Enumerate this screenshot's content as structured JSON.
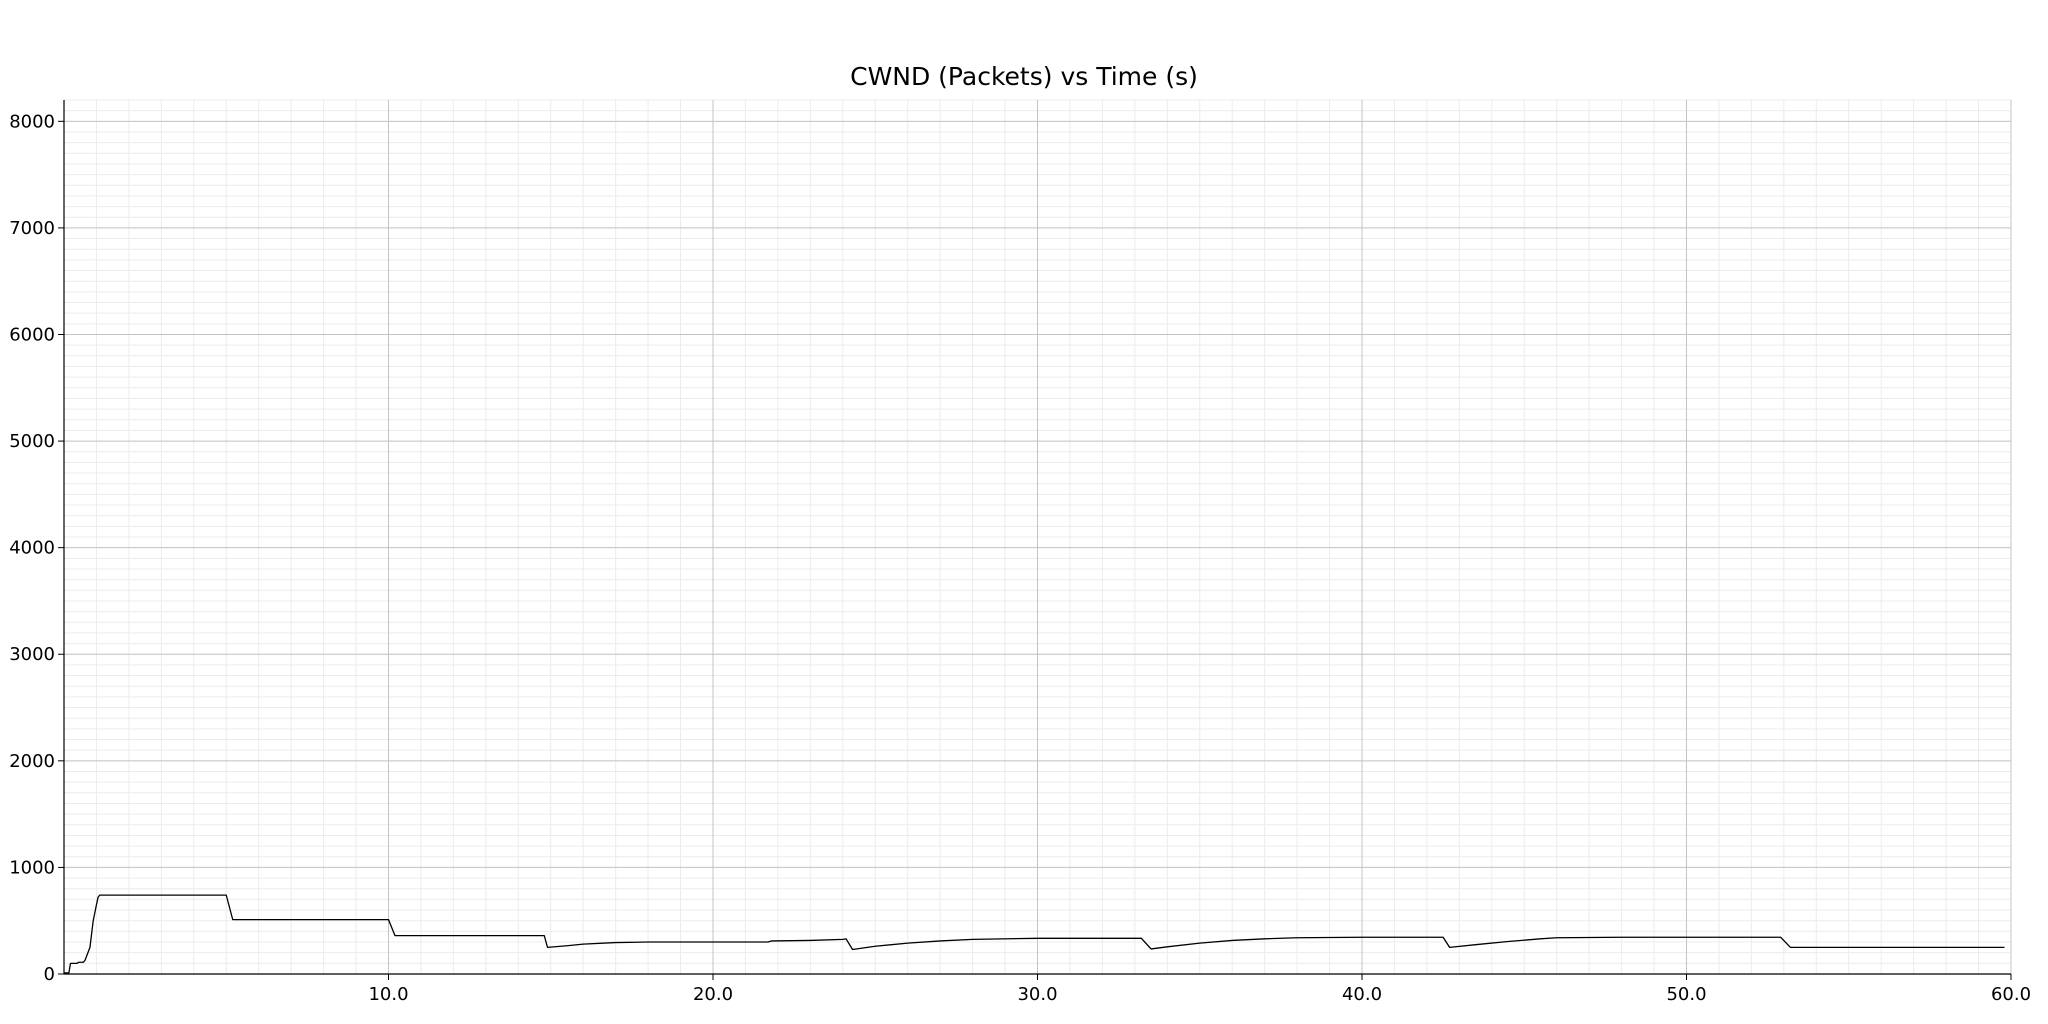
{
  "chart_data": {
    "type": "line",
    "title": "CWND (Packets) vs Time (s)",
    "xlabel": "",
    "ylabel": "",
    "xlim": [
      0,
      60
    ],
    "ylim": [
      0,
      8200
    ],
    "grid": true,
    "x_ticks": [
      10,
      20,
      30,
      40,
      50,
      60
    ],
    "x_tick_labels": [
      "10.0",
      "20.0",
      "30.0",
      "40.0",
      "50.0",
      "60.0"
    ],
    "y_ticks": [
      0,
      1000,
      2000,
      3000,
      4000,
      5000,
      6000,
      7000,
      8000
    ],
    "y_tick_labels": [
      "0",
      "1000",
      "2000",
      "3000",
      "4000",
      "5000",
      "6000",
      "7000",
      "8000"
    ],
    "series": [
      {
        "color": "#000000",
        "x": [
          0,
          0.15,
          0.2,
          0.4,
          0.45,
          0.6,
          0.65,
          0.8,
          0.9,
          1.0,
          1.05,
          1.1,
          5.0,
          5.2,
          10.0,
          10.2,
          14.8,
          14.9,
          15.5,
          16.0,
          17.0,
          18.0,
          20.0,
          21.7,
          21.8,
          23.0,
          24.0,
          24.1,
          24.3,
          25.0,
          26.0,
          27.0,
          28.0,
          30.0,
          32.0,
          33.2,
          33.5,
          34.0,
          35.0,
          36.0,
          37.0,
          38.0,
          40.0,
          42.5,
          42.7,
          43.5,
          44.5,
          45.5,
          46.0,
          48.0,
          50.0,
          52.9,
          53.2,
          54.0,
          56.0,
          58.0,
          59.8
        ],
        "y": [
          10,
          10,
          100,
          100,
          110,
          110,
          130,
          250,
          500,
          650,
          720,
          740,
          740,
          510,
          510,
          360,
          360,
          250,
          265,
          280,
          295,
          300,
          300,
          300,
          310,
          315,
          325,
          330,
          230,
          260,
          290,
          310,
          325,
          335,
          335,
          335,
          235,
          255,
          290,
          315,
          330,
          340,
          345,
          345,
          250,
          275,
          305,
          330,
          340,
          345,
          345,
          345,
          250,
          250,
          250,
          250,
          250
        ]
      }
    ]
  }
}
